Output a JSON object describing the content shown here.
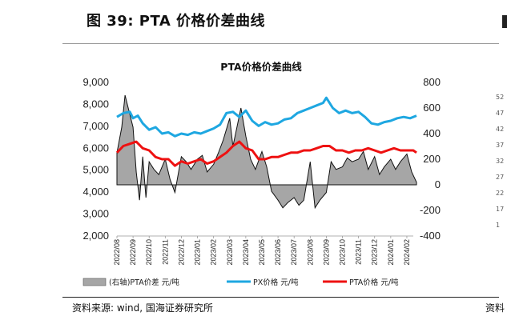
{
  "figure": {
    "title": "图 39:  PTA 价格价差曲线",
    "source": "资料来源:  wind, 国海证券研究所",
    "source_right": "资料"
  },
  "right_edge_ticks": [
    "52",
    "47",
    "42",
    "37",
    "32",
    "27",
    "22",
    "17",
    "1"
  ],
  "chart_data": {
    "type": "line",
    "title": "PTA价格价差曲线",
    "xlabel": "",
    "ylabel": "",
    "x_categories": [
      "2022/08",
      "2022/09",
      "2022/10",
      "2022/11",
      "2022/12",
      "2023/01",
      "2023/02",
      "2023/03",
      "2023/04",
      "2023/05",
      "2023/06",
      "2023/07",
      "2023/08",
      "2023/09",
      "2023/10",
      "2023/11",
      "2023/12",
      "2024/01",
      "2024/02"
    ],
    "y_left": {
      "range": [
        2000,
        9000
      ],
      "ticks": [
        "2,000",
        "3,000",
        "4,000",
        "5,000",
        "6,000",
        "7,000",
        "8,000",
        "9,000"
      ]
    },
    "y_right": {
      "range": [
        -400,
        800
      ],
      "ticks": [
        "-400",
        "-200",
        "0",
        "200",
        "400",
        "600",
        "800"
      ]
    },
    "grid": false,
    "legend_position": "bottom",
    "series": [
      {
        "name": "(右轴)PTA价差 元/吨",
        "axis": "right",
        "style": "area",
        "color": "#a6a6a6",
        "x": [
          0,
          0.3,
          0.5,
          0.7,
          1.0,
          1.2,
          1.4,
          1.6,
          1.8,
          2.0,
          2.3,
          2.6,
          3.0,
          3.3,
          3.6,
          4.0,
          4.3,
          4.6,
          5.0,
          5.3,
          5.6,
          6.0,
          6.3,
          6.6,
          7.0,
          7.2,
          7.4,
          7.7,
          8.0,
          8.3,
          8.6,
          9.0,
          9.3,
          9.6,
          10.0,
          10.3,
          10.6,
          11.0,
          11.3,
          11.6,
          12.0,
          12.3,
          12.6,
          13.0,
          13.3,
          13.6,
          14.0,
          14.3,
          14.6,
          15.0,
          15.3,
          15.6,
          16.0,
          16.3,
          16.6,
          17.0,
          17.3,
          17.6,
          18.0,
          18.3,
          18.6
        ],
        "values": [
          250,
          450,
          700,
          600,
          450,
          100,
          -120,
          220,
          -100,
          180,
          120,
          80,
          200,
          40,
          -60,
          220,
          180,
          120,
          200,
          230,
          100,
          160,
          250,
          350,
          520,
          300,
          420,
          600,
          380,
          200,
          120,
          260,
          140,
          -50,
          -120,
          -180,
          -140,
          -100,
          -160,
          -120,
          180,
          -180,
          -120,
          -60,
          180,
          120,
          140,
          210,
          180,
          200,
          260,
          120,
          220,
          80,
          140,
          200,
          120,
          180,
          240,
          100,
          20
        ]
      },
      {
        "name": "PX价格 元/吨",
        "axis": "right",
        "style": "line",
        "color": "#1ea7e1",
        "x": [
          0,
          0.4,
          0.8,
          1.0,
          1.3,
          1.6,
          2.0,
          2.4,
          2.8,
          3.2,
          3.6,
          4.0,
          4.4,
          4.8,
          5.2,
          5.6,
          6.0,
          6.4,
          6.8,
          7.2,
          7.6,
          8.0,
          8.4,
          8.8,
          9.2,
          9.6,
          10.0,
          10.4,
          10.8,
          11.2,
          11.6,
          12.0,
          12.4,
          12.8,
          13.0,
          13.4,
          13.8,
          14.2,
          14.6,
          15.0,
          15.4,
          15.8,
          16.2,
          16.6,
          17.0,
          17.4,
          17.8,
          18.2,
          18.6
        ],
        "values": [
          530,
          560,
          570,
          520,
          540,
          480,
          430,
          450,
          400,
          410,
          380,
          400,
          390,
          410,
          400,
          420,
          440,
          470,
          560,
          570,
          530,
          580,
          500,
          460,
          490,
          470,
          480,
          510,
          520,
          560,
          580,
          600,
          620,
          640,
          680,
          600,
          560,
          580,
          560,
          570,
          530,
          480,
          470,
          490,
          500,
          520,
          530,
          520,
          540
        ]
      },
      {
        "name": "PTA价格 元/吨",
        "axis": "left",
        "style": "line",
        "color": "#ee1111",
        "x": [
          0,
          0.4,
          0.8,
          1.2,
          1.6,
          2.0,
          2.4,
          2.8,
          3.2,
          3.6,
          4.0,
          4.4,
          4.8,
          5.2,
          5.6,
          6.0,
          6.4,
          6.8,
          7.2,
          7.6,
          8.0,
          8.4,
          8.8,
          9.2,
          9.6,
          10.0,
          10.4,
          10.8,
          11.2,
          11.6,
          12.0,
          12.4,
          12.8,
          13.2,
          13.6,
          14.0,
          14.4,
          14.8,
          15.2,
          15.6,
          16.0,
          16.4,
          16.8,
          17.2,
          17.6,
          18.0,
          18.4,
          18.6
        ],
        "values": [
          5800,
          6100,
          6200,
          6300,
          6000,
          5900,
          5600,
          5500,
          5500,
          5200,
          5400,
          5300,
          5400,
          5500,
          5300,
          5400,
          5600,
          5800,
          6100,
          6300,
          6000,
          5900,
          5500,
          5500,
          5600,
          5600,
          5700,
          5800,
          5800,
          5900,
          5900,
          6000,
          6100,
          6100,
          5900,
          5900,
          5800,
          5900,
          5900,
          6000,
          5900,
          5800,
          5900,
          6000,
          5900,
          5900,
          5900,
          5800
        ]
      }
    ]
  }
}
